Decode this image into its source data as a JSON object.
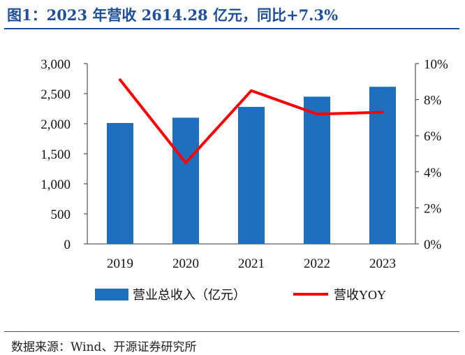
{
  "figure_title": "图1：2023 年营收 2614.28 亿元，同比+7.3%",
  "source": "数据来源：Wind、开源证券研究所",
  "colors": {
    "bar": "#1f6fbf",
    "line": "#ff0000",
    "title": "#1f4e9a"
  },
  "chart_data": {
    "type": "bar+line",
    "categories": [
      "2019",
      "2020",
      "2021",
      "2022",
      "2023"
    ],
    "series": [
      {
        "name": "营业总收入（亿元）",
        "type": "bar",
        "axis": "left",
        "values": [
          2012,
          2100,
          2280,
          2450,
          2614.28
        ]
      },
      {
        "name": "营收YOY",
        "type": "line",
        "axis": "right",
        "values": [
          9.1,
          4.5,
          8.5,
          7.2,
          7.3
        ]
      }
    ],
    "y_left": {
      "min": 0,
      "max": 3000,
      "step": 500,
      "ticks": [
        "0",
        "500",
        "1,000",
        "1,500",
        "2,000",
        "2,500",
        "3,000"
      ]
    },
    "y_right": {
      "min": 0,
      "max": 10,
      "step": 2,
      "ticks": [
        "0%",
        "2%",
        "4%",
        "6%",
        "8%",
        "10%"
      ]
    },
    "legend_position": "bottom",
    "grid": false
  }
}
